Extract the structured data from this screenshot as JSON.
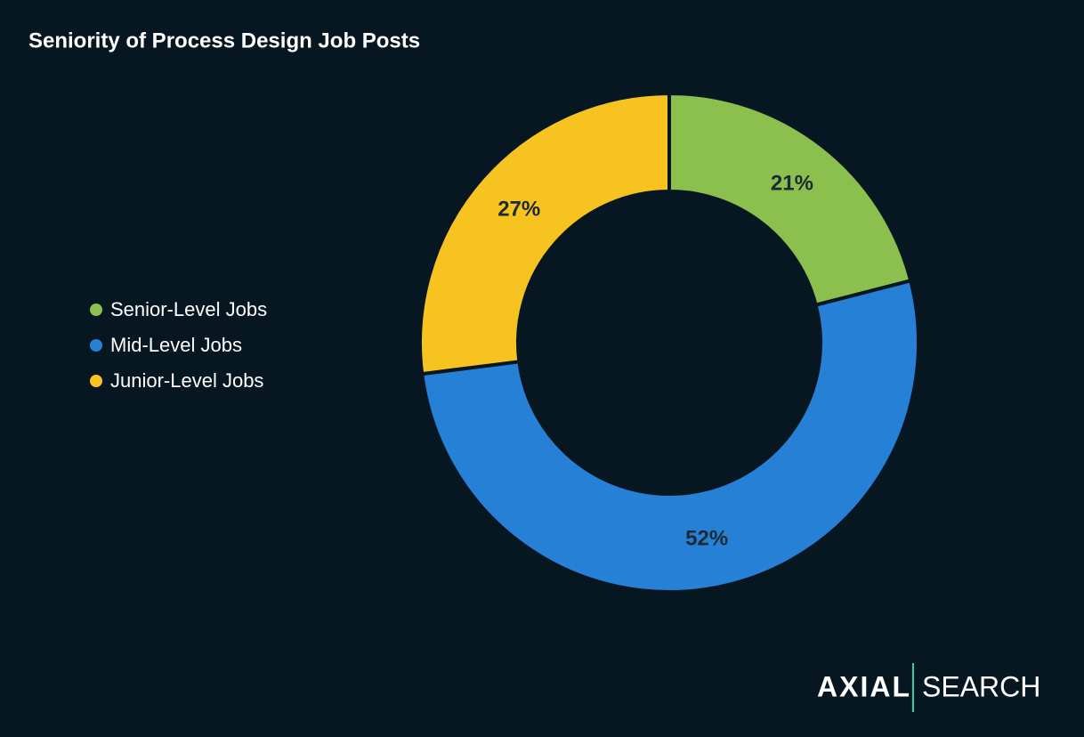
{
  "chart_data": {
    "type": "donut",
    "title": "Seniority of Process Design Job Posts",
    "categories": [
      "Senior-Level Jobs",
      "Mid-Level Jobs",
      "Junior-Level Jobs"
    ],
    "values": [
      21,
      52,
      27
    ],
    "value_labels": [
      "21%",
      "52%",
      "27%"
    ],
    "colors": [
      "#8bc04e",
      "#2680d6",
      "#f6c321"
    ],
    "legend": "left"
  },
  "logo": {
    "brand": "AXIAL",
    "product": "SEARCH"
  }
}
